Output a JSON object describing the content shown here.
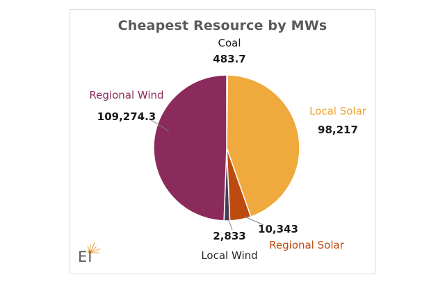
{
  "window": {
    "background": "#ffffff",
    "frame_border_color": "#d9d9d9"
  },
  "chart_data": {
    "type": "pie",
    "title": "Cheapest Resource by MWs",
    "title_color": "#595959",
    "start_angle_deg": 0,
    "direction": "clockwise",
    "legend_position": "none",
    "slice_gap_color": "#ffffff",
    "slices": [
      {
        "label": "Coal",
        "value": 483.7,
        "display": "483.7",
        "color": "#ffffff",
        "label_color": "#1a1a1a"
      },
      {
        "label": "Local Solar",
        "value": 98217,
        "display": "98,217",
        "color": "#f0a93c",
        "label_color": "#efa32f"
      },
      {
        "label": "Regional Solar",
        "value": 10343,
        "display": "10,343",
        "color": "#bd4b10",
        "label_color": "#bd4b10"
      },
      {
        "label": "Local Wind",
        "value": 2833,
        "display": "2,833",
        "color": "#4a3c58",
        "label_color": "#262626"
      },
      {
        "label": "Regional Wind",
        "value": 109274.3,
        "display": "109,274.3",
        "color": "#8b2b5b",
        "label_color": "#8b2b5b"
      }
    ]
  },
  "logo": {
    "text": "EI",
    "text_color": "#5b5b5b",
    "burst_color": "#e8a33d"
  }
}
